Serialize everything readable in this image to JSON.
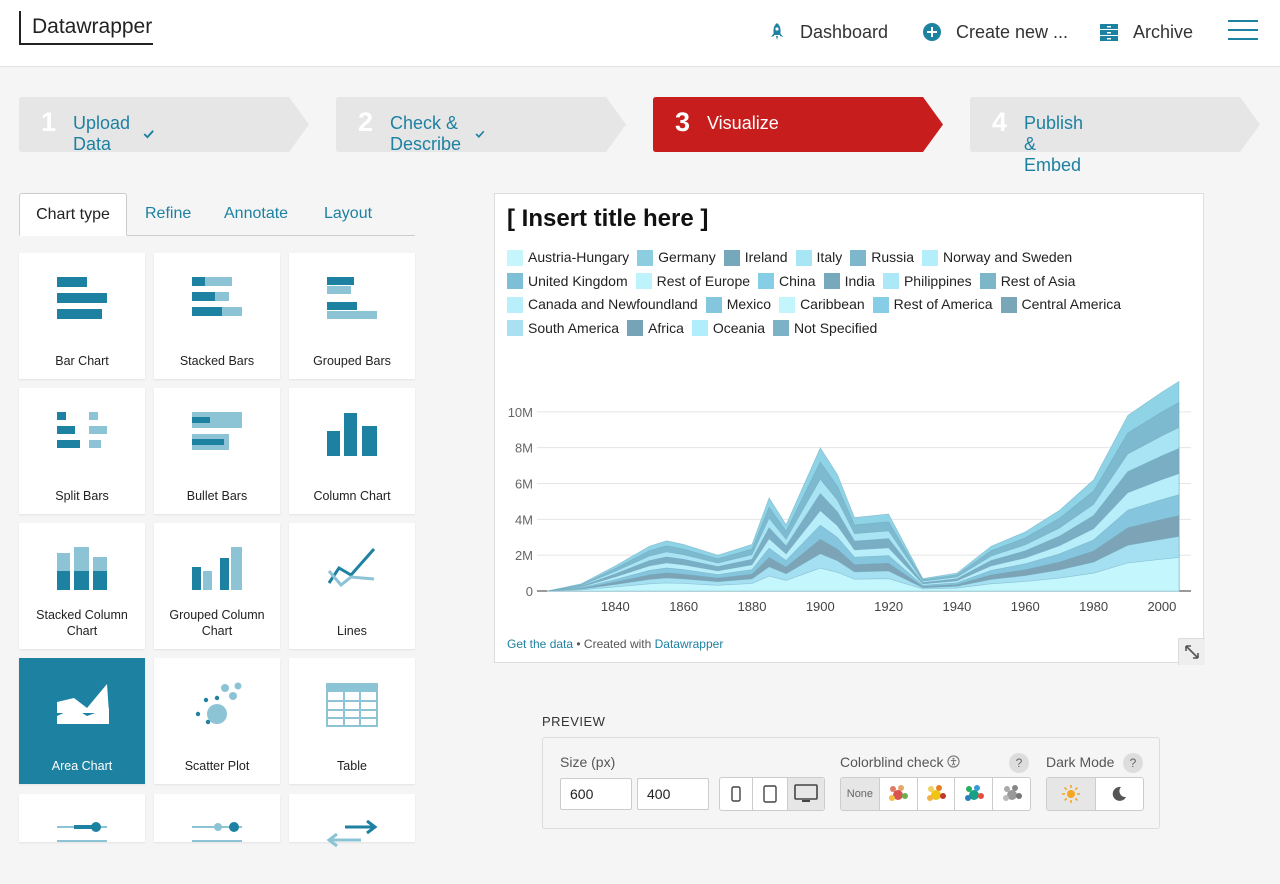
{
  "app": {
    "logo": "Datawrapper"
  },
  "nav": {
    "dashboard": "Dashboard",
    "create_new": "Create new ...",
    "archive": "Archive"
  },
  "steps": [
    {
      "num": "1",
      "label": "Upload Data",
      "done": true
    },
    {
      "num": "2",
      "label": "Check & Describe",
      "done": true
    },
    {
      "num": "3",
      "label": "Visualize",
      "active": true
    },
    {
      "num": "4",
      "label": "Publish & Embed"
    }
  ],
  "tabs": [
    "Chart type",
    "Refine",
    "Annotate",
    "Layout"
  ],
  "chart_types": [
    "Bar Chart",
    "Stacked Bars",
    "Grouped Bars",
    "Split Bars",
    "Bullet Bars",
    "Column Chart",
    "Stacked Column Chart",
    "Grouped Column Chart",
    "Lines",
    "Area Chart",
    "Scatter Plot",
    "Table"
  ],
  "colors": {
    "accent": "#1d81a2",
    "active_step": "#c71e1d",
    "step_bg": "#e6e6e6"
  },
  "chart_data": {
    "type": "area",
    "title": "[ Insert title here ]",
    "x": [
      1820,
      1830,
      1840,
      1850,
      1855,
      1860,
      1870,
      1880,
      1885,
      1890,
      1900,
      1905,
      1910,
      1920,
      1930,
      1940,
      1950,
      1960,
      1970,
      1980,
      1990,
      2000,
      2005
    ],
    "total": [
      0,
      0.4,
      1.4,
      2.5,
      2.8,
      2.6,
      2.0,
      2.6,
      5.2,
      3.7,
      8.0,
      6.5,
      4.1,
      4.3,
      0.7,
      1.0,
      2.5,
      3.3,
      4.5,
      6.2,
      9.8,
      11.1,
      11.7
    ],
    "ylim": [
      0,
      12
    ],
    "y_ticks": [
      "0",
      "2M",
      "4M",
      "6M",
      "8M",
      "10M"
    ],
    "x_ticks": [
      "1840",
      "1860",
      "1880",
      "1900",
      "1920",
      "1940",
      "1960",
      "1980",
      "2000"
    ],
    "legend": [
      {
        "name": "Austria-Hungary",
        "color": "#c5f6fc"
      },
      {
        "name": "Germany",
        "color": "#8ccde0"
      },
      {
        "name": "Ireland",
        "color": "#75a8bb"
      },
      {
        "name": "Italy",
        "color": "#a8e6f6"
      },
      {
        "name": "Russia",
        "color": "#7eb6cc"
      },
      {
        "name": "Norway and Sweden",
        "color": "#b5eefb"
      },
      {
        "name": "United Kingdom",
        "color": "#7dbfd6"
      },
      {
        "name": "Rest of Europe",
        "color": "#bff3fc"
      },
      {
        "name": "China",
        "color": "#86cde6"
      },
      {
        "name": "India",
        "color": "#77a9bd"
      },
      {
        "name": "Philippines",
        "color": "#ade8f7"
      },
      {
        "name": "Rest of Asia",
        "color": "#7eb6c9"
      },
      {
        "name": "Canada and Newfoundland",
        "color": "#b9effb"
      },
      {
        "name": "Mexico",
        "color": "#84c6de"
      },
      {
        "name": "Caribbean",
        "color": "#c3f5fc"
      },
      {
        "name": "Rest of America",
        "color": "#87cde5"
      },
      {
        "name": "Central America",
        "color": "#7aa7b8"
      },
      {
        "name": "South America",
        "color": "#a9e1f3"
      },
      {
        "name": "Africa",
        "color": "#76a4b6"
      },
      {
        "name": "Oceania",
        "color": "#b2edfb"
      },
      {
        "name": "Not Specified",
        "color": "#7cb2c7"
      }
    ],
    "footer": {
      "get_data": "Get the data",
      "created_with": " • Created with ",
      "brand": "Datawrapper"
    }
  },
  "preview": {
    "section_label": "PREVIEW",
    "size_label": "Size (px)",
    "width": "600",
    "height": "400",
    "colorblind_label": "Colorblind check",
    "colorblind_none": "None",
    "darkmode_label": "Dark Mode",
    "help": "?"
  }
}
